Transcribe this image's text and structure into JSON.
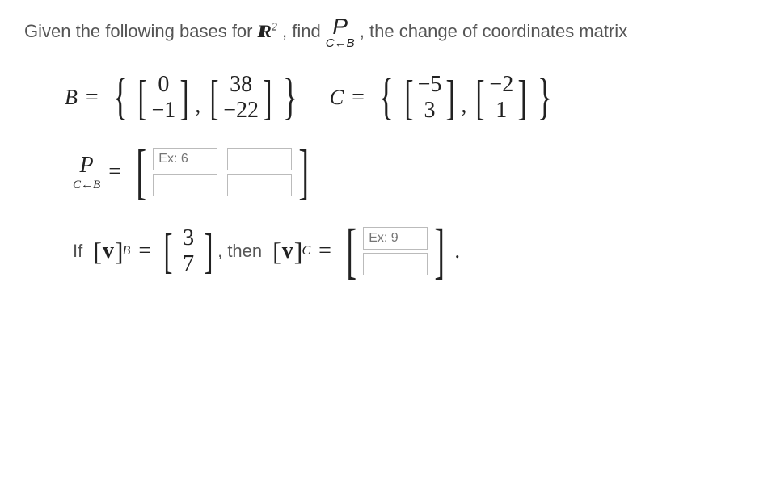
{
  "question": {
    "prefix": "Given the following bases for ",
    "space": "ℝ",
    "exponent": "2",
    "mid": ", find ",
    "suffix": ", the change of coordinates matrix "
  },
  "varP": "P",
  "subCB": {
    "C": "C",
    "arrow": "←",
    "B": "B"
  },
  "basisB": {
    "name": "B",
    "v1": [
      "0",
      "−1"
    ],
    "v2": [
      "38",
      "−22"
    ]
  },
  "basisC": {
    "name": "C",
    "v1": [
      "−5",
      "3"
    ],
    "v2": [
      "−2",
      "1"
    ]
  },
  "matrixP": {
    "placeholder": "Ex: 6"
  },
  "part3": {
    "if": "If ",
    "vb": "v",
    "subB": "B",
    "vec": [
      "3",
      "7"
    ],
    "then": ", then ",
    "subC": "C",
    "placeholder": "Ex: 9"
  }
}
